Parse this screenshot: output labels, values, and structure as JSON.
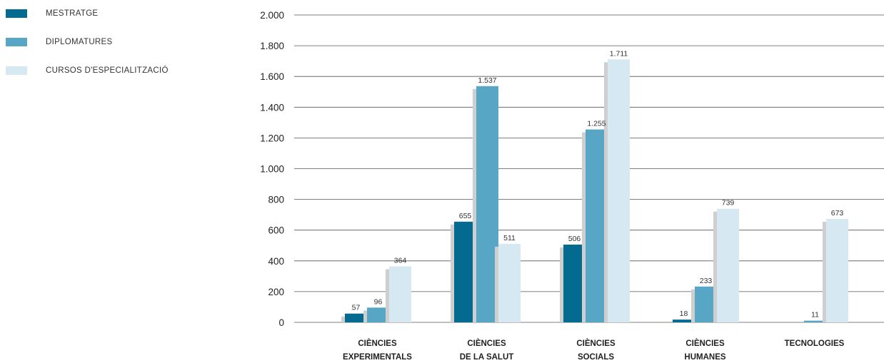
{
  "chart_data": {
    "type": "bar",
    "categories": [
      [
        "CIÈNCIES",
        "EXPERIMENTALS"
      ],
      [
        "CIÈNCIES",
        "DE LA SALUT"
      ],
      [
        "CIÈNCIES",
        "SOCIALS"
      ],
      [
        "CIÈNCIES",
        "HUMANES"
      ],
      [
        "TECNOLOGIES"
      ]
    ],
    "series": [
      {
        "name": "MESTRATGE",
        "color": "#046a8f",
        "values": [
          57,
          655,
          506,
          18,
          null
        ],
        "labels": [
          "57",
          "655",
          "506",
          "18",
          ""
        ]
      },
      {
        "name": "DIPLOMATURES",
        "color": "#57a6c6",
        "values": [
          96,
          1537,
          1255,
          233,
          11
        ],
        "labels": [
          "96",
          "1.537",
          "1.255",
          "233",
          "11"
        ]
      },
      {
        "name": "CURSOS D'ESPECIALITZACIÓ",
        "color": "#d6e8f1",
        "values": [
          364,
          511,
          1711,
          739,
          673
        ],
        "labels": [
          "364",
          "511",
          "1.711",
          "739",
          "673"
        ]
      }
    ],
    "ylim": [
      0,
      2000
    ],
    "yticks": [
      0,
      200,
      400,
      600,
      800,
      1000,
      1200,
      1400,
      1600,
      1800,
      2000
    ],
    "ytick_labels": [
      "0",
      "200",
      "400",
      "600",
      "800",
      "1.000",
      "1.200",
      "1.400",
      "1.600",
      "1.800",
      "2.000"
    ],
    "grid": true,
    "legend_position": "top-left",
    "shadow_color": "#cfcfcf",
    "grid_color": "#555555"
  }
}
